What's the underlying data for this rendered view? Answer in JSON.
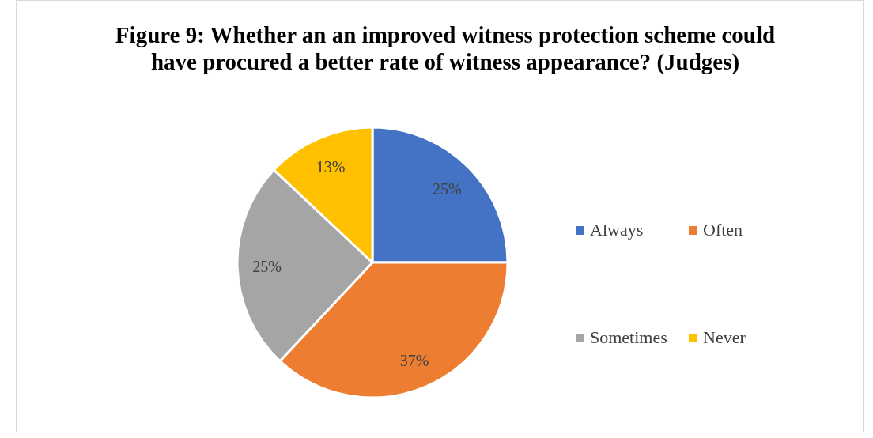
{
  "chart_data": {
    "type": "pie",
    "title": "Figure 9: Whether an an improved witness protection scheme could have procured a better rate of witness appearance? (Judges)",
    "categories": [
      "Always",
      "Often",
      "Sometimes",
      "Never"
    ],
    "values": [
      25,
      37,
      25,
      13
    ],
    "colors": [
      "#4472c4",
      "#ed7d31",
      "#a5a5a5",
      "#ffc000"
    ],
    "value_labels": [
      "25%",
      "37%",
      "25%",
      "13%"
    ],
    "legend": "right"
  }
}
